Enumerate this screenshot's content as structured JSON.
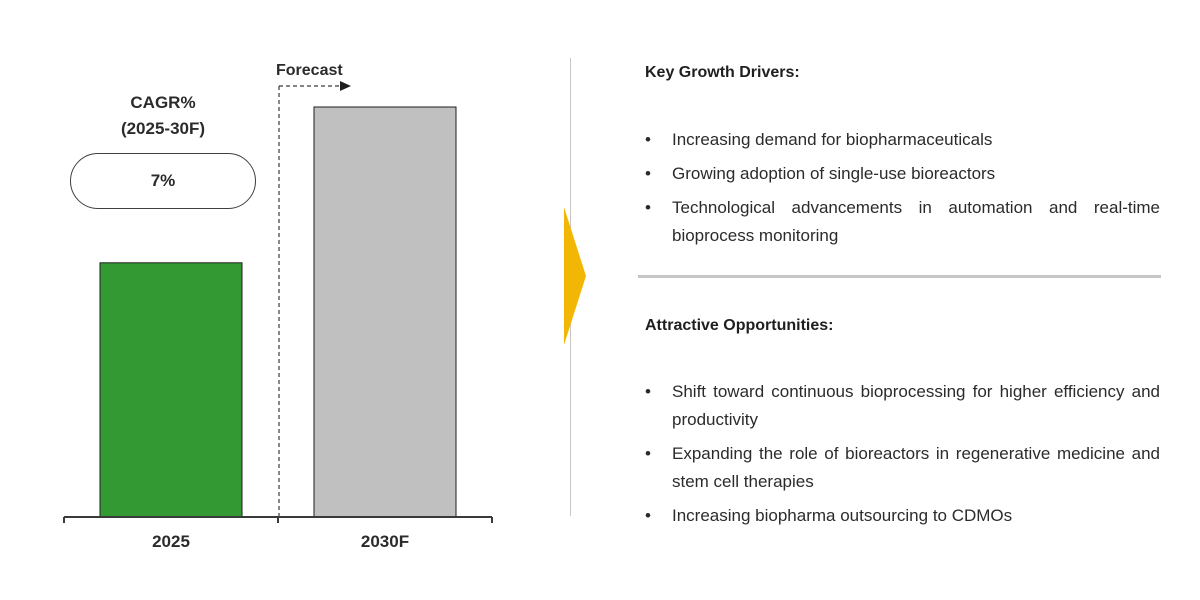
{
  "chart_data": {
    "type": "bar",
    "categories": [
      "2025",
      "2030F"
    ],
    "values": [
      62,
      100
    ],
    "ylim": [
      0,
      100
    ],
    "colors": [
      "#339933",
      "#c0c0c0"
    ],
    "forecast_label": "Forecast",
    "cagr": {
      "title_line1": "CAGR%",
      "title_line2": "(2025-30F)",
      "value": "7%"
    }
  },
  "drivers": {
    "title": "Key Growth Drivers:",
    "items": [
      "Increasing demand for biopharmaceuticals",
      "Growing adoption of single-use bioreactors",
      "Technological advancements in automation and real-time bioprocess monitoring"
    ]
  },
  "opportunities": {
    "title": "Attractive Opportunities:",
    "items": [
      "Shift toward continuous bioprocessing for higher efficiency and productivity",
      "Expanding the role of bioreactors in regenerative medicine and stem cell therapies",
      "Increasing biopharma outsourcing to CDMOs"
    ]
  },
  "bullet_symbol": "•",
  "accent_color": "#f2b705"
}
